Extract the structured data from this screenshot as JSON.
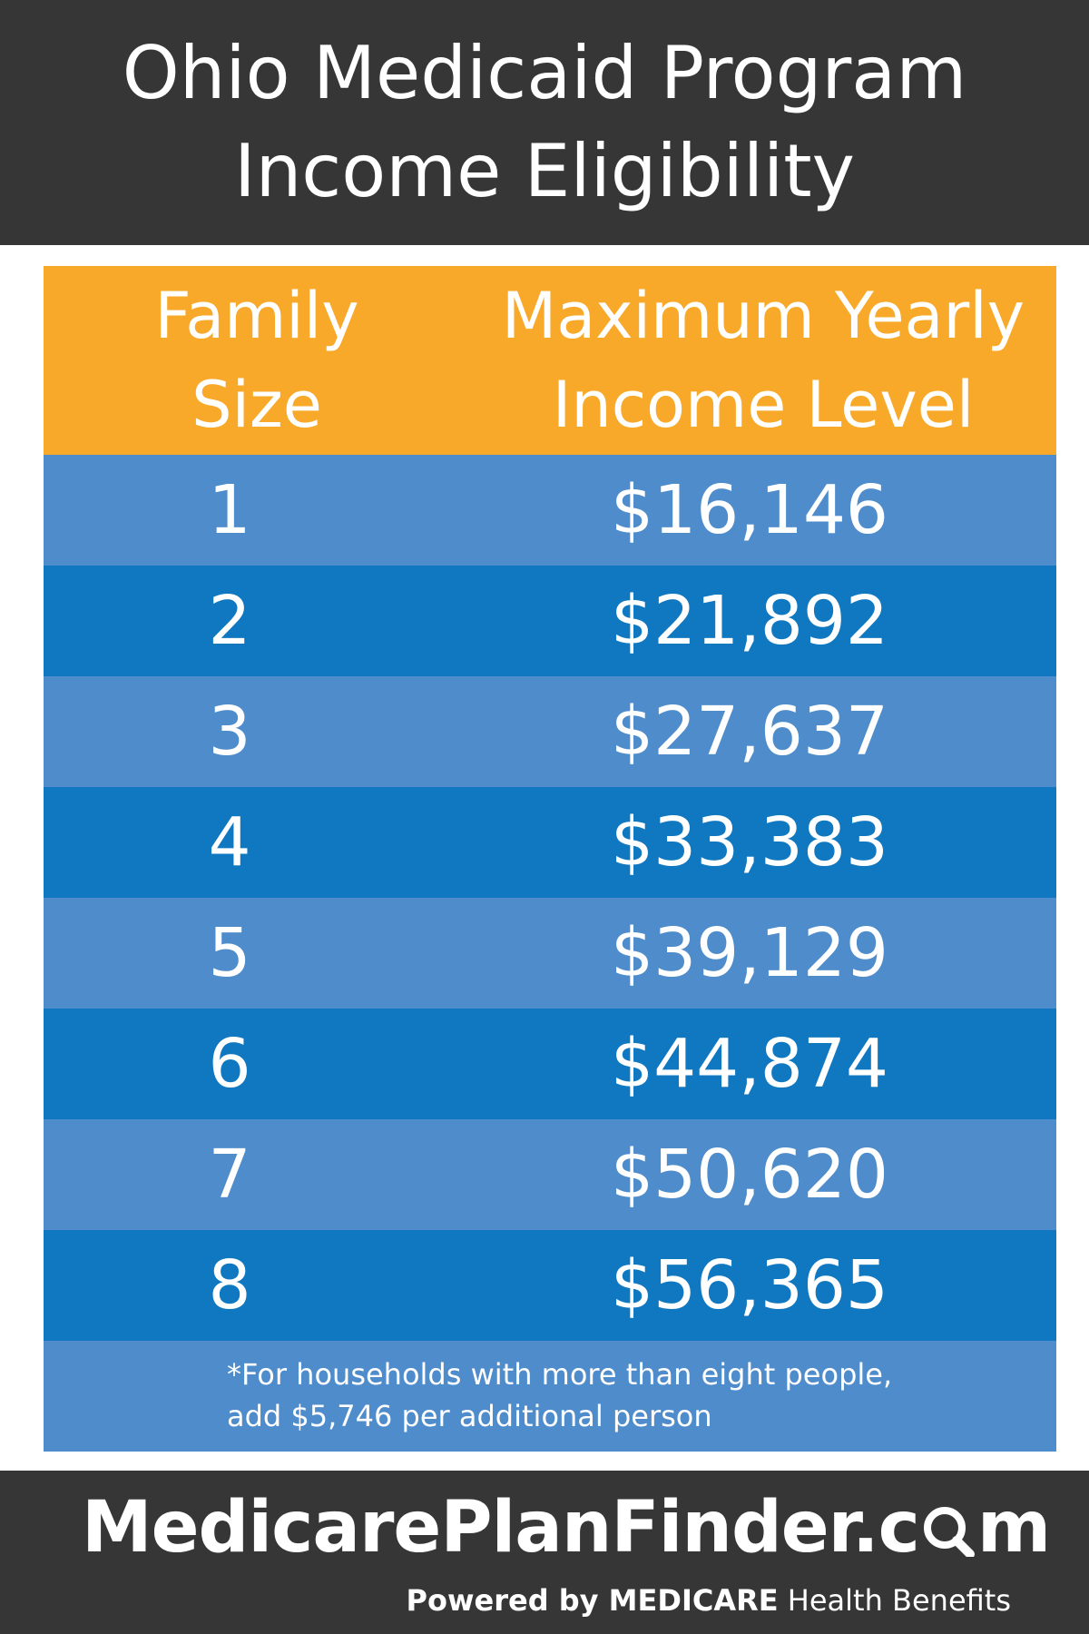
{
  "header": {
    "title_line1": "Ohio Medicaid Program",
    "title_line2": "Income Eligibility"
  },
  "table": {
    "col1_line1": "Family",
    "col1_line2": "Size",
    "col2_line1": "Maximum Yearly",
    "col2_line2": "Income Level",
    "rows": [
      {
        "size": "1",
        "income": "$16,146"
      },
      {
        "size": "2",
        "income": "$21,892"
      },
      {
        "size": "3",
        "income": "$27,637"
      },
      {
        "size": "4",
        "income": "$33,383"
      },
      {
        "size": "5",
        "income": "$39,129"
      },
      {
        "size": "6",
        "income": "$44,874"
      },
      {
        "size": "7",
        "income": "$50,620"
      },
      {
        "size": "8",
        "income": "$56,365"
      }
    ],
    "note_line1": "*For households with more than eight people,",
    "note_line2": "add $5,746 per additional person"
  },
  "footer": {
    "brand_prefix": "MedicarePlanFinder.c",
    "brand_suffix": "m",
    "tagline_bold": "Powered by MEDICARE",
    "tagline_rest": " Health Benefits"
  },
  "colors": {
    "header_bg": "#363636",
    "table_header_bg": "#f8a929",
    "row_light": "#4e8ccb",
    "row_dark": "#0f78c1"
  },
  "icons": {
    "brand_o": "magnifier-icon"
  }
}
